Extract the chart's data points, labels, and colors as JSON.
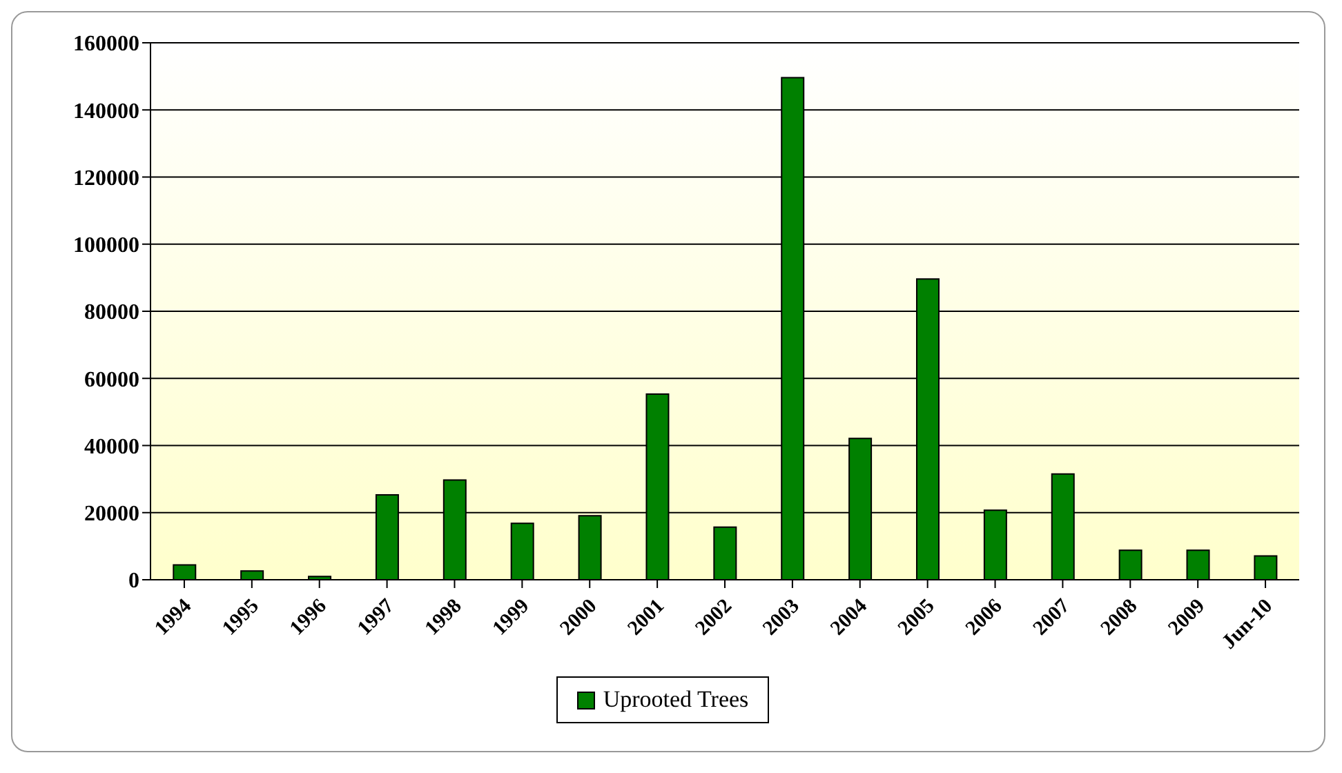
{
  "chart_data": {
    "type": "bar",
    "categories": [
      "1994",
      "1995",
      "1996",
      "1997",
      "1998",
      "1999",
      "2000",
      "2001",
      "2002",
      "2003",
      "2004",
      "2005",
      "2006",
      "2007",
      "2008",
      "2009",
      "Jun-10"
    ],
    "series": [
      {
        "name": "Uprooted Trees",
        "color": "#008000",
        "values": [
          4400,
          2600,
          1000,
          25300,
          29700,
          16800,
          19100,
          55300,
          15700,
          149600,
          42100,
          89600,
          20700,
          31500,
          8800,
          8800,
          7100
        ]
      }
    ],
    "ylim": [
      0,
      160000
    ],
    "yticks": [
      0,
      20000,
      40000,
      60000,
      80000,
      100000,
      120000,
      140000,
      160000
    ],
    "grid": "y",
    "legend": "bottom"
  }
}
